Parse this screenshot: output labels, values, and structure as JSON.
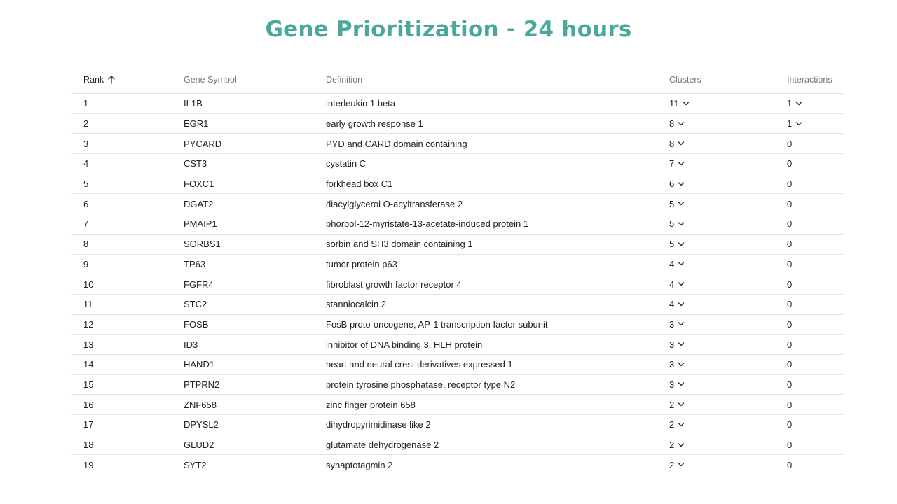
{
  "title": "Gene Prioritization - 24 hours",
  "table": {
    "headers": {
      "rank": "Rank",
      "gene": "Gene Symbol",
      "definition": "Definition",
      "clusters": "Clusters",
      "interactions": "Interactions"
    },
    "sort": {
      "column": "rank",
      "direction": "ascending",
      "icon": "arrow-up-icon"
    },
    "rows": [
      {
        "rank": "1",
        "gene": "IL1B",
        "definition": "interleukin 1 beta",
        "clusters": "11",
        "interactions": "1",
        "interactions_expandable": true
      },
      {
        "rank": "2",
        "gene": "EGR1",
        "definition": "early growth response 1",
        "clusters": "8",
        "interactions": "1",
        "interactions_expandable": true
      },
      {
        "rank": "3",
        "gene": "PYCARD",
        "definition": "PYD and CARD domain containing",
        "clusters": "8",
        "interactions": "0",
        "interactions_expandable": false
      },
      {
        "rank": "4",
        "gene": "CST3",
        "definition": "cystatin C",
        "clusters": "7",
        "interactions": "0",
        "interactions_expandable": false
      },
      {
        "rank": "5",
        "gene": "FOXC1",
        "definition": "forkhead box C1",
        "clusters": "6",
        "interactions": "0",
        "interactions_expandable": false
      },
      {
        "rank": "6",
        "gene": "DGAT2",
        "definition": "diacylglycerol O-acyltransferase 2",
        "clusters": "5",
        "interactions": "0",
        "interactions_expandable": false
      },
      {
        "rank": "7",
        "gene": "PMAIP1",
        "definition": "phorbol-12-myristate-13-acetate-induced protein 1",
        "clusters": "5",
        "interactions": "0",
        "interactions_expandable": false
      },
      {
        "rank": "8",
        "gene": "SORBS1",
        "definition": "sorbin and SH3 domain containing 1",
        "clusters": "5",
        "interactions": "0",
        "interactions_expandable": false
      },
      {
        "rank": "9",
        "gene": "TP63",
        "definition": "tumor protein p63",
        "clusters": "4",
        "interactions": "0",
        "interactions_expandable": false
      },
      {
        "rank": "10",
        "gene": "FGFR4",
        "definition": "fibroblast growth factor receptor 4",
        "clusters": "4",
        "interactions": "0",
        "interactions_expandable": false
      },
      {
        "rank": "11",
        "gene": "STC2",
        "definition": "stanniocalcin 2",
        "clusters": "4",
        "interactions": "0",
        "interactions_expandable": false
      },
      {
        "rank": "12",
        "gene": "FOSB",
        "definition": "FosB proto-oncogene, AP-1 transcription factor subunit",
        "clusters": "3",
        "interactions": "0",
        "interactions_expandable": false
      },
      {
        "rank": "13",
        "gene": "ID3",
        "definition": "inhibitor of DNA binding 3, HLH protein",
        "clusters": "3",
        "interactions": "0",
        "interactions_expandable": false
      },
      {
        "rank": "14",
        "gene": "HAND1",
        "definition": "heart and neural crest derivatives expressed 1",
        "clusters": "3",
        "interactions": "0",
        "interactions_expandable": false
      },
      {
        "rank": "15",
        "gene": "PTPRN2",
        "definition": "protein tyrosine phosphatase, receptor type N2",
        "clusters": "3",
        "interactions": "0",
        "interactions_expandable": false
      },
      {
        "rank": "16",
        "gene": "ZNF658",
        "definition": "zinc finger protein 658",
        "clusters": "2",
        "interactions": "0",
        "interactions_expandable": false
      },
      {
        "rank": "17",
        "gene": "DPYSL2",
        "definition": "dihydropyrimidinase like 2",
        "clusters": "2",
        "interactions": "0",
        "interactions_expandable": false
      },
      {
        "rank": "18",
        "gene": "GLUD2",
        "definition": "glutamate dehydrogenase 2",
        "clusters": "2",
        "interactions": "0",
        "interactions_expandable": false
      },
      {
        "rank": "19",
        "gene": "SYT2",
        "definition": "synaptotagmin 2",
        "clusters": "2",
        "interactions": "0",
        "interactions_expandable": false
      }
    ]
  },
  "colors": {
    "title": "#4aa79b",
    "text": "#222222",
    "header_text": "#777777",
    "divider": "#e2e2e2"
  }
}
